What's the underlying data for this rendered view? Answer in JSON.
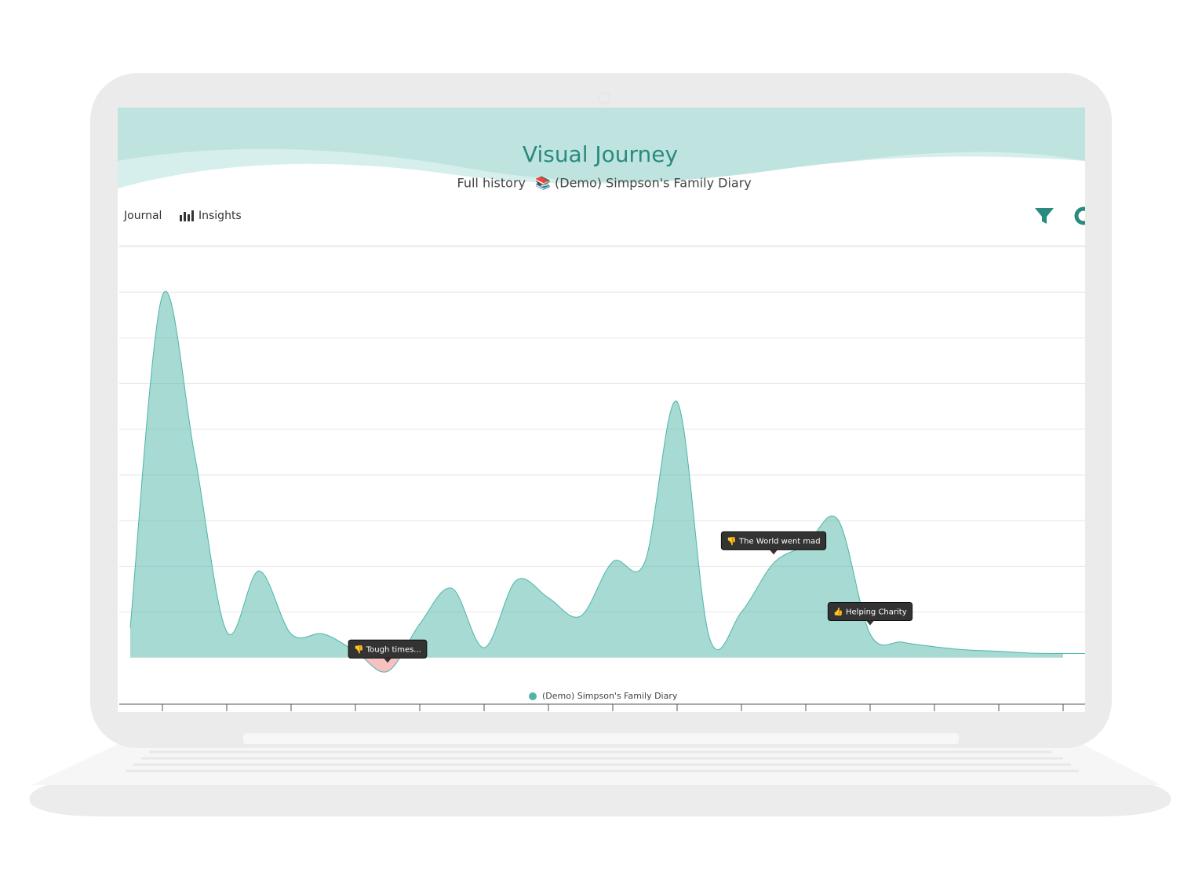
{
  "header": {
    "title": "Visual Journey",
    "subtitle": "Full history",
    "diary": "📚 (Demo) Simpson's Family Diary"
  },
  "nav": [
    "Journal",
    "Insights"
  ],
  "chart_data": {
    "type": "area",
    "categories": [
      null,
      null,
      null,
      null,
      null,
      null,
      null,
      null,
      null,
      null,
      null,
      null,
      null,
      null,
      null,
      null,
      null,
      null,
      null,
      null,
      null,
      null,
      null,
      null,
      null,
      null,
      null,
      null,
      null,
      null
    ],
    "series": [
      {
        "name": "(Demo) Simpson's Family Diary",
        "color": "#4db6a8",
        "negative_color": "#f4a6a6",
        "values": [
          0.66,
          7.93,
          4.45,
          0.57,
          1.9,
          0.52,
          0.52,
          0.14,
          -0.3,
          0.74,
          1.52,
          0.22,
          1.69,
          1.31,
          0.91,
          2.1,
          2.1,
          5.6,
          0.45,
          1.0,
          2.07,
          2.47,
          3.02,
          0.52,
          0.34,
          0.24,
          0.17,
          0.14,
          0.1,
          0.09
        ]
      }
    ],
    "ylim": [
      -1,
      9
    ],
    "yticks": [
      1,
      2,
      3,
      4,
      5,
      6,
      7,
      8,
      9
    ],
    "grid": true,
    "annotations": [
      {
        "label": "👎 Tough times...",
        "x": 8
      },
      {
        "label": "👎 The World went mad",
        "x": 20
      },
      {
        "label": "👍 Helping Charity",
        "x": 23
      }
    ]
  }
}
